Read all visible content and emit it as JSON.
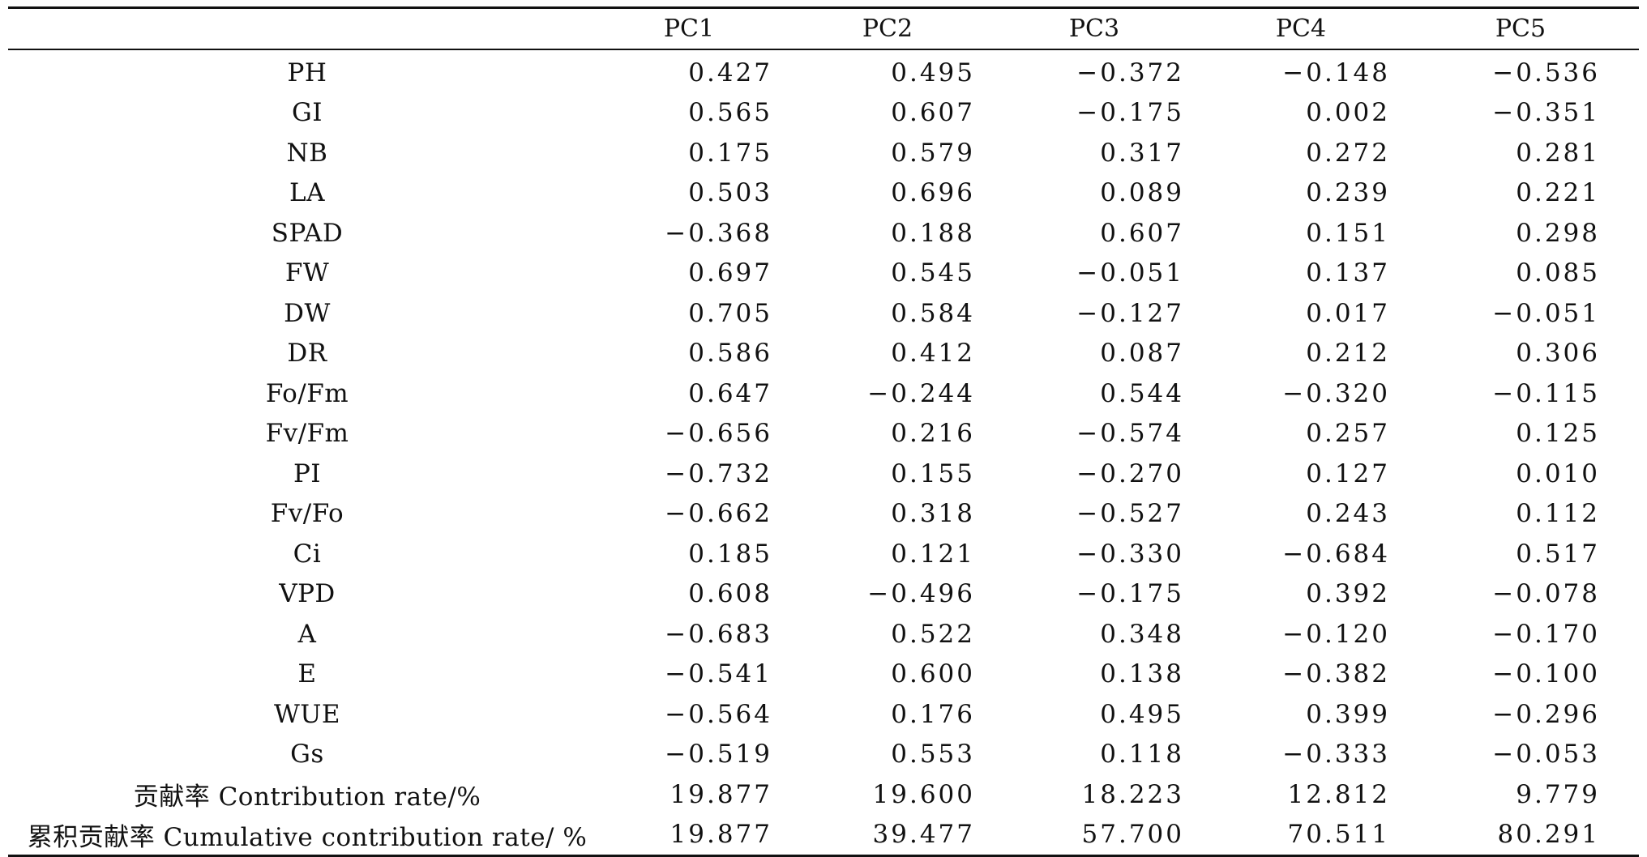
{
  "table": {
    "headers": [
      "",
      "PC1",
      "PC2",
      "PC3",
      "PC4",
      "PC5"
    ],
    "rows": [
      {
        "label": "PH",
        "values": [
          "0.427",
          "0.495",
          "−0.372",
          "−0.148",
          "−0.536"
        ]
      },
      {
        "label": "GI",
        "values": [
          "0.565",
          "0.607",
          "−0.175",
          "0.002",
          "−0.351"
        ]
      },
      {
        "label": "NB",
        "values": [
          "0.175",
          "0.579",
          "0.317",
          "0.272",
          "0.281"
        ]
      },
      {
        "label": "LA",
        "values": [
          "0.503",
          "0.696",
          "0.089",
          "0.239",
          "0.221"
        ]
      },
      {
        "label": "SPAD",
        "values": [
          "−0.368",
          "0.188",
          "0.607",
          "0.151",
          "0.298"
        ]
      },
      {
        "label": "FW",
        "values": [
          "0.697",
          "0.545",
          "−0.051",
          "0.137",
          "0.085"
        ]
      },
      {
        "label": "DW",
        "values": [
          "0.705",
          "0.584",
          "−0.127",
          "0.017",
          "−0.051"
        ]
      },
      {
        "label": "DR",
        "values": [
          "0.586",
          "0.412",
          "0.087",
          "0.212",
          "0.306"
        ]
      },
      {
        "label": "Fo/Fm",
        "values": [
          "0.647",
          "−0.244",
          "0.544",
          "−0.320",
          "−0.115"
        ]
      },
      {
        "label": "Fv/Fm",
        "values": [
          "−0.656",
          "0.216",
          "−0.574",
          "0.257",
          "0.125"
        ]
      },
      {
        "label": "PI",
        "values": [
          "−0.732",
          "0.155",
          "−0.270",
          "0.127",
          "0.010"
        ]
      },
      {
        "label": "Fv/Fo",
        "values": [
          "−0.662",
          "0.318",
          "−0.527",
          "0.243",
          "0.112"
        ]
      },
      {
        "label": "Ci",
        "values": [
          "0.185",
          "0.121",
          "−0.330",
          "−0.684",
          "0.517"
        ]
      },
      {
        "label": "VPD",
        "values": [
          "0.608",
          "−0.496",
          "−0.175",
          "0.392",
          "−0.078"
        ]
      },
      {
        "label": "A",
        "values": [
          "−0.683",
          "0.522",
          "0.348",
          "−0.120",
          "−0.170"
        ]
      },
      {
        "label": "E",
        "values": [
          "−0.541",
          "0.600",
          "0.138",
          "−0.382",
          "−0.100"
        ]
      },
      {
        "label": "WUE",
        "values": [
          "−0.564",
          "0.176",
          "0.495",
          "0.399",
          "−0.296"
        ]
      },
      {
        "label": "Gs",
        "values": [
          "−0.519",
          "0.553",
          "0.118",
          "−0.333",
          "−0.053"
        ]
      },
      {
        "label": "贡献率 Contribution rate/%",
        "values": [
          "19.877",
          "19.600",
          "18.223",
          "12.812",
          "9.779"
        ]
      },
      {
        "label": "累积贡献率 Cumulative contribution rate/ %",
        "values": [
          "19.877",
          "39.477",
          "57.700",
          "70.511",
          "80.291"
        ]
      }
    ]
  }
}
